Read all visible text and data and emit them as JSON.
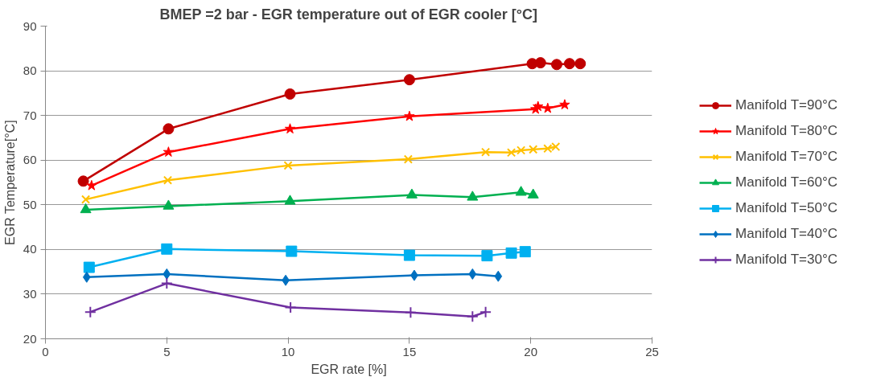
{
  "chart_data": {
    "type": "line",
    "title": "BMEP =2 bar - EGR temperature out of EGR cooler [°C]",
    "xlabel": "EGR rate [%]",
    "ylabel": "EGR Temperature[°C]",
    "xlim": [
      0,
      25
    ],
    "xticks": [
      0,
      5,
      10,
      15,
      20,
      25
    ],
    "ylim": [
      20,
      90
    ],
    "yticks": [
      20,
      30,
      40,
      50,
      60,
      70,
      80,
      90
    ],
    "grid": "y",
    "legend": "right",
    "series": [
      {
        "name": "Manifold T=90°C",
        "color": "#c00000",
        "marker": "circle",
        "x": [
          1.56,
          5.07,
          10.08,
          15,
          20.06,
          20.4,
          21.07,
          21.6,
          22.04
        ],
        "values": [
          55.3,
          67,
          74.8,
          78,
          81.6,
          81.8,
          81.4,
          81.6,
          81.6
        ]
      },
      {
        "name": "Manifold T=80°C",
        "color": "#ff0000",
        "marker": "star",
        "x": [
          1.9,
          5.07,
          10.08,
          15,
          20.2,
          20.3,
          20.7,
          21.4
        ],
        "values": [
          54.3,
          61.8,
          67,
          69.8,
          71.4,
          72,
          71.6,
          72.4
        ]
      },
      {
        "name": "Manifold T=70°C",
        "color": "#ffc000",
        "marker": "x",
        "x": [
          1.66,
          5.04,
          10,
          14.95,
          18.14,
          19.2,
          19.6,
          20.1,
          20.7,
          21.03
        ],
        "values": [
          51.2,
          55.5,
          58.8,
          60.2,
          61.8,
          61.7,
          62.2,
          62.4,
          62.6,
          63
        ]
      },
      {
        "name": "Manifold T=60°C",
        "color": "#00b050",
        "marker": "triangle",
        "x": [
          1.66,
          5.07,
          10.08,
          15.1,
          17.6,
          19.6,
          20.1
        ],
        "values": [
          48.9,
          49.7,
          50.8,
          52.2,
          51.7,
          52.8,
          52.2
        ]
      },
      {
        "name": "Manifold T=50°C",
        "color": "#00b0f0",
        "marker": "square",
        "x": [
          1.8,
          5,
          10.14,
          15,
          18.2,
          19.2,
          19.77
        ],
        "values": [
          36,
          40.1,
          39.6,
          38.7,
          38.6,
          39.2,
          39.5
        ]
      },
      {
        "name": "Manifold T=40°C",
        "color": "#0070c0",
        "marker": "diamond",
        "x": [
          1.7,
          5,
          9.9,
          15.2,
          17.6,
          18.66
        ],
        "values": [
          33.8,
          34.5,
          33.1,
          34.2,
          34.5,
          34
        ]
      },
      {
        "name": "Manifold T=30°C",
        "color": "#7030a0",
        "marker": "cross",
        "x": [
          1.85,
          5,
          10.1,
          15.05,
          17.6,
          18.14
        ],
        "values": [
          26,
          32.4,
          27,
          25.9,
          25,
          26
        ]
      }
    ]
  }
}
